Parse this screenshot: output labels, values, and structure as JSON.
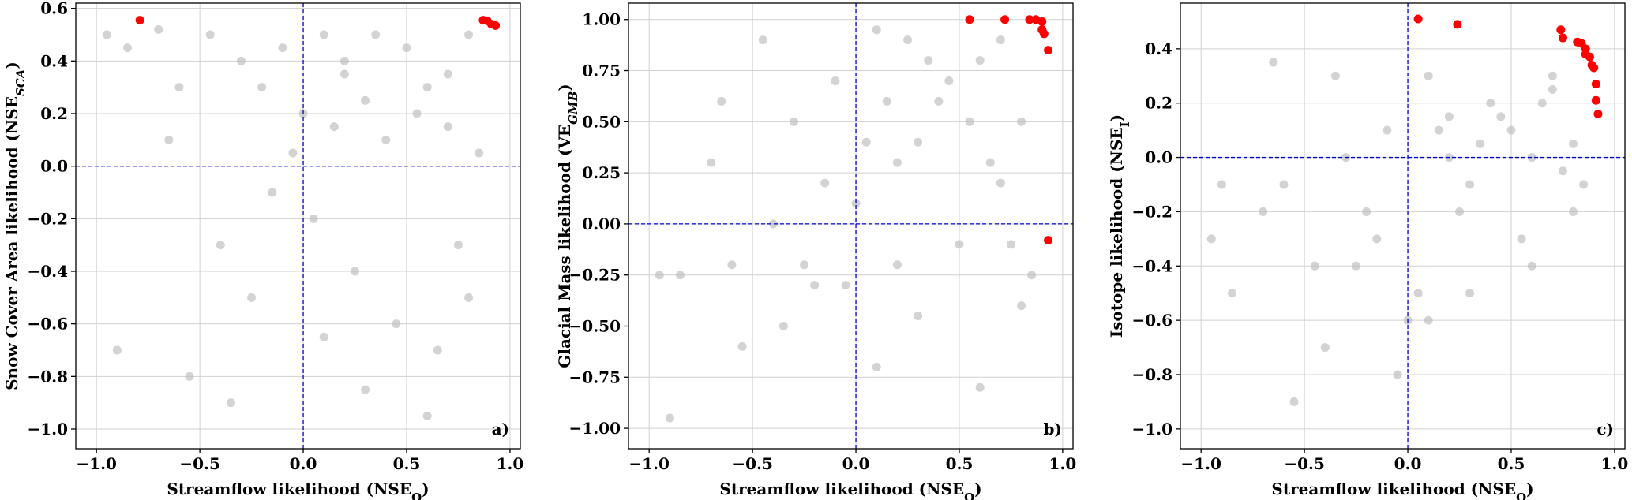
{
  "chart_data": [
    {
      "type": "scatter",
      "panel_label": "a)",
      "xlabel": [
        "Streamflow likelihood (NSE",
        "Q",
        ")"
      ],
      "ylabel": [
        "Snow Cover Area likelihood (NSE",
        "SCA",
        ")"
      ],
      "xlim": [
        -1.1,
        1.05
      ],
      "ylim": [
        -1.075,
        0.62
      ],
      "xticks": [
        {
          "value": -1,
          "label": "−1.0"
        },
        {
          "value": -0.5,
          "label": "−0.5"
        },
        {
          "value": 0,
          "label": "0.0"
        },
        {
          "value": 0.5,
          "label": "0.5"
        },
        {
          "value": 1,
          "label": "1.0"
        }
      ],
      "yticks": [
        {
          "value": -1,
          "label": "−1.0"
        },
        {
          "value": -0.8,
          "label": "−0.8"
        },
        {
          "value": -0.6,
          "label": "−0.6"
        },
        {
          "value": -0.4,
          "label": "−0.4"
        },
        {
          "value": -0.2,
          "label": "−0.2"
        },
        {
          "value": 0,
          "label": "0.0"
        },
        {
          "value": 0.2,
          "label": "0.2"
        },
        {
          "value": 0.4,
          "label": "0.4"
        },
        {
          "value": 0.6,
          "label": "0.6"
        }
      ],
      "grid": true,
      "reference_lines": {
        "x": 0,
        "y": 0,
        "color": "#0000cc"
      },
      "series": [
        {
          "color": "#bbbbbb",
          "x": [
            -0.95,
            -0.85,
            -0.7,
            -0.6,
            -0.45,
            -0.3,
            -0.2,
            -0.1,
            0.0,
            0.1,
            0.2,
            0.3,
            0.4,
            0.5,
            0.6,
            0.7,
            0.8,
            0.85,
            -0.4,
            -0.25,
            -0.15,
            0.05,
            0.25,
            0.45,
            0.65,
            0.75,
            -0.05,
            0.15,
            0.35,
            0.55,
            -0.9,
            -0.55,
            -0.35,
            0.1,
            0.3,
            0.6,
            0.8,
            -0.65,
            0.2,
            0.7
          ],
          "y": [
            0.5,
            0.45,
            0.52,
            0.3,
            0.5,
            0.4,
            0.3,
            0.45,
            0.2,
            0.5,
            0.35,
            0.25,
            0.1,
            0.45,
            0.3,
            0.15,
            0.5,
            0.05,
            -0.3,
            -0.5,
            -0.1,
            -0.2,
            -0.4,
            -0.6,
            -0.7,
            -0.3,
            0.05,
            0.15,
            0.5,
            0.2,
            -0.7,
            -0.8,
            -0.9,
            -0.65,
            -0.85,
            -0.95,
            -0.5,
            0.1,
            0.4,
            0.35
          ]
        },
        {
          "color": "#ff0000",
          "x": [
            -0.79,
            0.87,
            0.89,
            0.91,
            0.93
          ],
          "y": [
            0.555,
            0.555,
            0.553,
            0.54,
            0.535
          ]
        }
      ]
    },
    {
      "type": "scatter",
      "panel_label": "b)",
      "xlabel": [
        "Streamflow likelihood (NSE",
        "Q",
        ")"
      ],
      "ylabel": [
        "Glacial Mass likelihood (VE",
        "GMB",
        ")"
      ],
      "xlim": [
        -1.1,
        1.05
      ],
      "ylim": [
        -1.1,
        1.08
      ],
      "xticks": [
        {
          "value": -1,
          "label": "−1.0"
        },
        {
          "value": -0.5,
          "label": "−0.5"
        },
        {
          "value": 0,
          "label": "0.0"
        },
        {
          "value": 0.5,
          "label": "0.5"
        },
        {
          "value": 1,
          "label": "1.0"
        }
      ],
      "yticks": [
        {
          "value": -1,
          "label": "−1.00"
        },
        {
          "value": -0.75,
          "label": "−0.75"
        },
        {
          "value": -0.5,
          "label": "−0.50"
        },
        {
          "value": -0.25,
          "label": "−0.25"
        },
        {
          "value": 0,
          "label": "0.00"
        },
        {
          "value": 0.25,
          "label": "0.25"
        },
        {
          "value": 0.5,
          "label": "0.50"
        },
        {
          "value": 0.75,
          "label": "0.75"
        },
        {
          "value": 1,
          "label": "1.00"
        }
      ],
      "grid": true,
      "reference_lines": {
        "x": 0,
        "y": 0,
        "color": "#0000cc"
      },
      "series": [
        {
          "color": "#bbbbbb",
          "x": [
            -0.95,
            -0.85,
            -0.7,
            -0.6,
            -0.45,
            -0.3,
            -0.2,
            -0.1,
            0.0,
            0.1,
            0.2,
            0.3,
            0.4,
            0.5,
            0.6,
            0.7,
            0.8,
            0.85,
            -0.4,
            -0.25,
            -0.15,
            0.05,
            0.25,
            0.45,
            0.65,
            0.75,
            -0.05,
            0.15,
            0.35,
            0.55,
            -0.9,
            -0.55,
            -0.35,
            0.1,
            0.3,
            0.6,
            0.8,
            -0.65,
            0.2,
            0.7
          ],
          "y": [
            -0.25,
            -0.25,
            0.3,
            -0.2,
            0.9,
            0.5,
            -0.3,
            0.7,
            0.1,
            0.95,
            -0.2,
            0.4,
            0.6,
            -0.1,
            0.8,
            0.2,
            0.5,
            -0.25,
            0.0,
            -0.2,
            0.2,
            0.4,
            0.9,
            0.7,
            0.3,
            -0.1,
            -0.3,
            0.6,
            0.8,
            0.5,
            -0.95,
            -0.6,
            -0.5,
            -0.7,
            -0.45,
            -0.8,
            -0.4,
            0.6,
            0.3,
            0.9
          ]
        },
        {
          "color": "#ff0000",
          "x": [
            0.55,
            0.72,
            0.84,
            0.87,
            0.9,
            0.9,
            0.91,
            0.93,
            0.93
          ],
          "y": [
            1.0,
            1.0,
            1.0,
            1.0,
            0.99,
            0.95,
            0.93,
            0.85,
            -0.08
          ]
        }
      ]
    },
    {
      "type": "scatter",
      "panel_label": "c)",
      "xlabel": [
        "Streamflow likelihood (NSE",
        "Q",
        ")"
      ],
      "ylabel": [
        "Isotope likelihood (NSE",
        "I",
        ")"
      ],
      "xlim": [
        -1.1,
        1.05
      ],
      "ylim": [
        -1.073,
        0.568
      ],
      "xticks": [
        {
          "value": -1,
          "label": "−1.0"
        },
        {
          "value": -0.5,
          "label": "−0.5"
        },
        {
          "value": 0,
          "label": "0.0"
        },
        {
          "value": 0.5,
          "label": "0.5"
        },
        {
          "value": 1,
          "label": "1.0"
        }
      ],
      "yticks": [
        {
          "value": -1,
          "label": "−1.0"
        },
        {
          "value": -0.8,
          "label": "−0.8"
        },
        {
          "value": -0.6,
          "label": "−0.6"
        },
        {
          "value": -0.4,
          "label": "−0.4"
        },
        {
          "value": -0.2,
          "label": "−0.2"
        },
        {
          "value": 0,
          "label": "0.0"
        },
        {
          "value": 0.2,
          "label": "0.2"
        },
        {
          "value": 0.4,
          "label": "0.4"
        }
      ],
      "grid": true,
      "reference_lines": {
        "x": 0,
        "y": 0,
        "color": "#0000cc"
      },
      "series": [
        {
          "color": "#bbbbbb",
          "x": [
            -0.95,
            -0.85,
            -0.7,
            -0.6,
            -0.45,
            -0.3,
            -0.2,
            -0.1,
            0.0,
            0.1,
            0.2,
            0.3,
            0.4,
            0.5,
            0.6,
            0.7,
            0.8,
            0.85,
            -0.4,
            -0.25,
            -0.15,
            0.05,
            0.25,
            0.45,
            0.65,
            0.75,
            -0.05,
            0.15,
            0.35,
            0.55,
            -0.9,
            -0.55,
            -0.35,
            0.1,
            0.3,
            0.6,
            0.8,
            -0.65,
            0.2,
            0.7
          ],
          "y": [
            -0.3,
            -0.5,
            -0.2,
            -0.1,
            -0.4,
            0.0,
            -0.2,
            0.1,
            -0.6,
            0.3,
            0.0,
            -0.1,
            0.2,
            0.1,
            0.0,
            0.25,
            0.05,
            -0.1,
            -0.7,
            -0.4,
            -0.3,
            -0.5,
            -0.2,
            0.15,
            0.2,
            -0.05,
            -0.8,
            0.1,
            0.05,
            -0.3,
            -0.1,
            -0.9,
            0.3,
            -0.6,
            -0.5,
            -0.4,
            -0.2,
            0.35,
            0.15,
            0.3
          ]
        },
        {
          "color": "#ff0000",
          "x": [
            0.05,
            0.24,
            0.74,
            0.75,
            0.82,
            0.84,
            0.86,
            0.86,
            0.88,
            0.89,
            0.9,
            0.91,
            0.91,
            0.92
          ],
          "y": [
            0.51,
            0.49,
            0.47,
            0.44,
            0.425,
            0.42,
            0.4,
            0.38,
            0.37,
            0.34,
            0.33,
            0.27,
            0.21,
            0.16
          ]
        }
      ]
    }
  ]
}
